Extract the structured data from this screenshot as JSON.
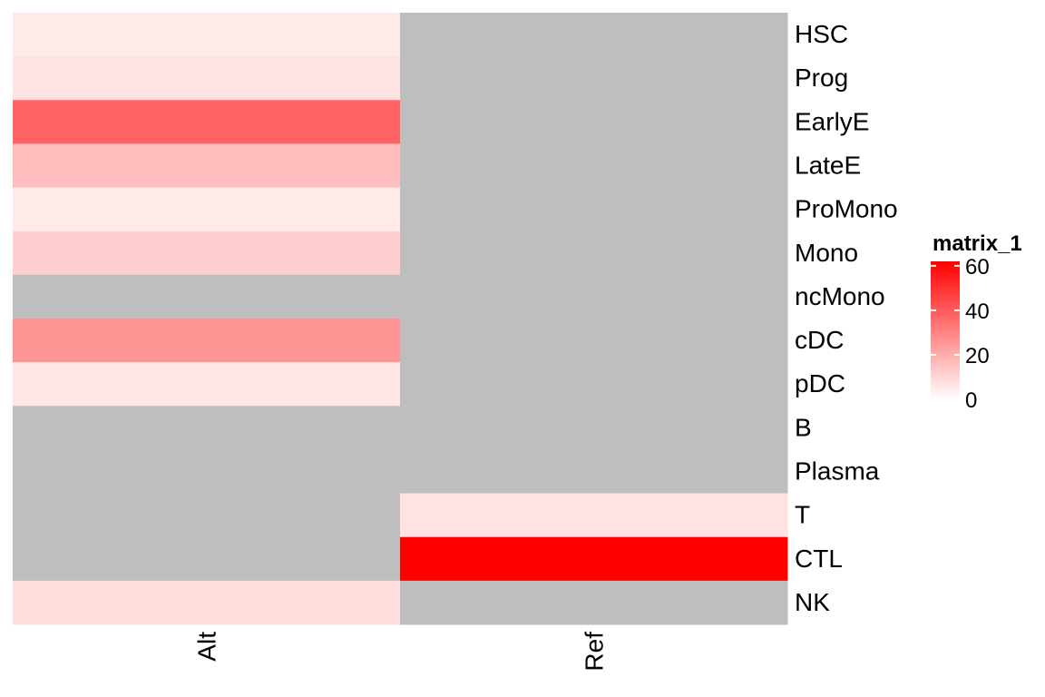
{
  "chart_data": {
    "type": "heatmap",
    "columns": [
      "Alt",
      "Ref"
    ],
    "rows": [
      "HSC",
      "Prog",
      "EarlyE",
      "LateE",
      "ProMono",
      "Mono",
      "ncMono",
      "cDC",
      "pDC",
      "B",
      "Plasma",
      "T",
      "CTL",
      "NK"
    ],
    "values": [
      [
        5,
        null
      ],
      [
        7,
        null
      ],
      [
        38,
        null
      ],
      [
        16,
        null
      ],
      [
        5,
        null
      ],
      [
        12,
        null
      ],
      [
        null,
        null
      ],
      [
        26,
        null
      ],
      [
        6,
        null
      ],
      [
        null,
        null
      ],
      [
        null,
        null
      ],
      [
        null,
        7
      ],
      [
        null,
        62
      ],
      [
        8,
        null
      ]
    ],
    "na_color": "#BEBEBE",
    "color_scale": {
      "low": "#FFFFFF",
      "high": "#FF0000",
      "min": 0,
      "max": 62
    },
    "legend": {
      "title": "matrix_1",
      "ticks": [
        0,
        20,
        40,
        60
      ],
      "tick_labels": [
        "0",
        "20",
        "40",
        "60"
      ],
      "placement": "right"
    }
  }
}
